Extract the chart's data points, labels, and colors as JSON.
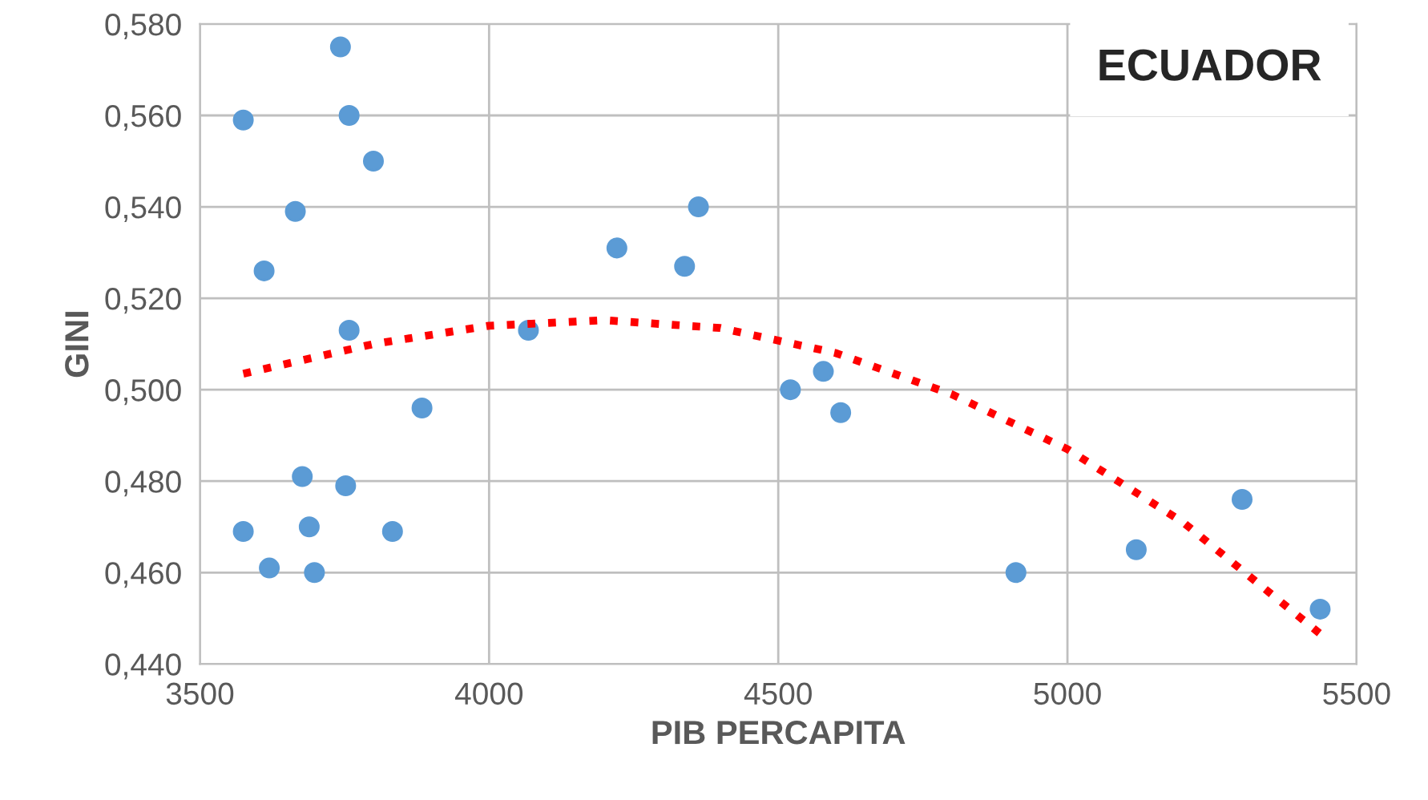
{
  "chart_data": {
    "type": "scatter",
    "title": "ECUADOR",
    "xlabel": "PIB PERCAPITA",
    "ylabel": "GINI",
    "xlim": [
      3500,
      5500
    ],
    "xticks": [
      3500,
      4000,
      4500,
      5000,
      5500
    ],
    "ylim": [
      0.44,
      0.58
    ],
    "yticks": [
      {
        "value": 0.44,
        "label": "0,440"
      },
      {
        "value": 0.46,
        "label": "0,460"
      },
      {
        "value": 0.48,
        "label": "0,480"
      },
      {
        "value": 0.5,
        "label": "0,500"
      },
      {
        "value": 0.52,
        "label": "0,520"
      },
      {
        "value": 0.54,
        "label": "0,540"
      },
      {
        "value": 0.56,
        "label": "0,560"
      },
      {
        "value": 0.58,
        "label": "0,580"
      }
    ],
    "grid": true,
    "legend": false,
    "series": [
      {
        "color": "#5b9bd5",
        "marker": "circle",
        "x": [
          3743,
          3575,
          3758,
          3800,
          3665,
          3611,
          3758,
          4362,
          4221,
          4338,
          4068,
          3884,
          4521,
          4578,
          4608,
          3677,
          3752,
          3575,
          3689,
          3833,
          3620,
          3698,
          4911,
          5119,
          5302,
          5437
        ],
        "values": [
          0.575,
          0.559,
          0.56,
          0.55,
          0.539,
          0.526,
          0.513,
          0.54,
          0.531,
          0.527,
          0.513,
          0.496,
          0.5,
          0.504,
          0.495,
          0.481,
          0.479,
          0.469,
          0.47,
          0.469,
          0.461,
          0.46,
          0.46,
          0.465,
          0.476,
          0.452
        ]
      },
      {
        "type": "line",
        "color": "#ff0000",
        "line_style": "dotted",
        "marker": "none",
        "x": [
          3575,
          3800,
          4000,
          4200,
          4400,
          4600,
          4800,
          5000,
          5200,
          5437
        ],
        "values": [
          0.5035,
          0.51,
          0.514,
          0.5152,
          0.5135,
          0.508,
          0.499,
          0.487,
          0.471,
          0.4466
        ]
      }
    ]
  }
}
